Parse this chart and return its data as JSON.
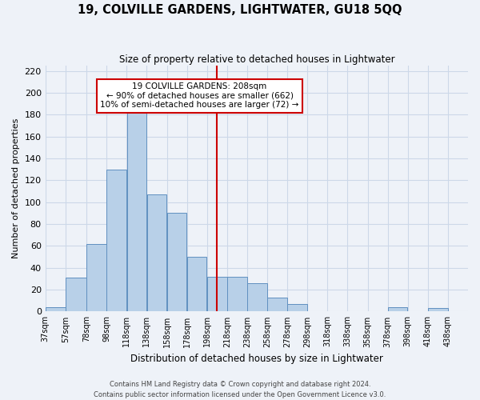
{
  "title": "19, COLVILLE GARDENS, LIGHTWATER, GU18 5QQ",
  "subtitle": "Size of property relative to detached houses in Lightwater",
  "xlabel": "Distribution of detached houses by size in Lightwater",
  "ylabel": "Number of detached properties",
  "bin_labels": [
    "37sqm",
    "57sqm",
    "78sqm",
    "98sqm",
    "118sqm",
    "138sqm",
    "158sqm",
    "178sqm",
    "198sqm",
    "218sqm",
    "238sqm",
    "258sqm",
    "278sqm",
    "298sqm",
    "318sqm",
    "338sqm",
    "358sqm",
    "378sqm",
    "398sqm",
    "418sqm",
    "438sqm"
  ],
  "bin_edges": [
    37,
    57,
    78,
    98,
    118,
    138,
    158,
    178,
    198,
    218,
    238,
    258,
    278,
    298,
    318,
    338,
    358,
    378,
    398,
    418,
    438,
    458
  ],
  "bar_heights": [
    4,
    31,
    62,
    130,
    182,
    107,
    90,
    50,
    32,
    32,
    26,
    13,
    7,
    0,
    0,
    0,
    0,
    4,
    0,
    3,
    0
  ],
  "bar_color": "#b8d0e8",
  "bar_edge_color": "#6090c0",
  "property_line_x": 208,
  "property_line_color": "#cc0000",
  "annotation_line1": "19 COLVILLE GARDENS: 208sqm",
  "annotation_line2": "← 90% of detached houses are smaller (662)",
  "annotation_line3": "10% of semi-detached houses are larger (72) →",
  "ylim": [
    0,
    225
  ],
  "yticks": [
    0,
    20,
    40,
    60,
    80,
    100,
    120,
    140,
    160,
    180,
    200,
    220
  ],
  "grid_color": "#ccd8e8",
  "background_color": "#eef2f8",
  "footer_line1": "Contains HM Land Registry data © Crown copyright and database right 2024.",
  "footer_line2": "Contains public sector information licensed under the Open Government Licence v3.0."
}
